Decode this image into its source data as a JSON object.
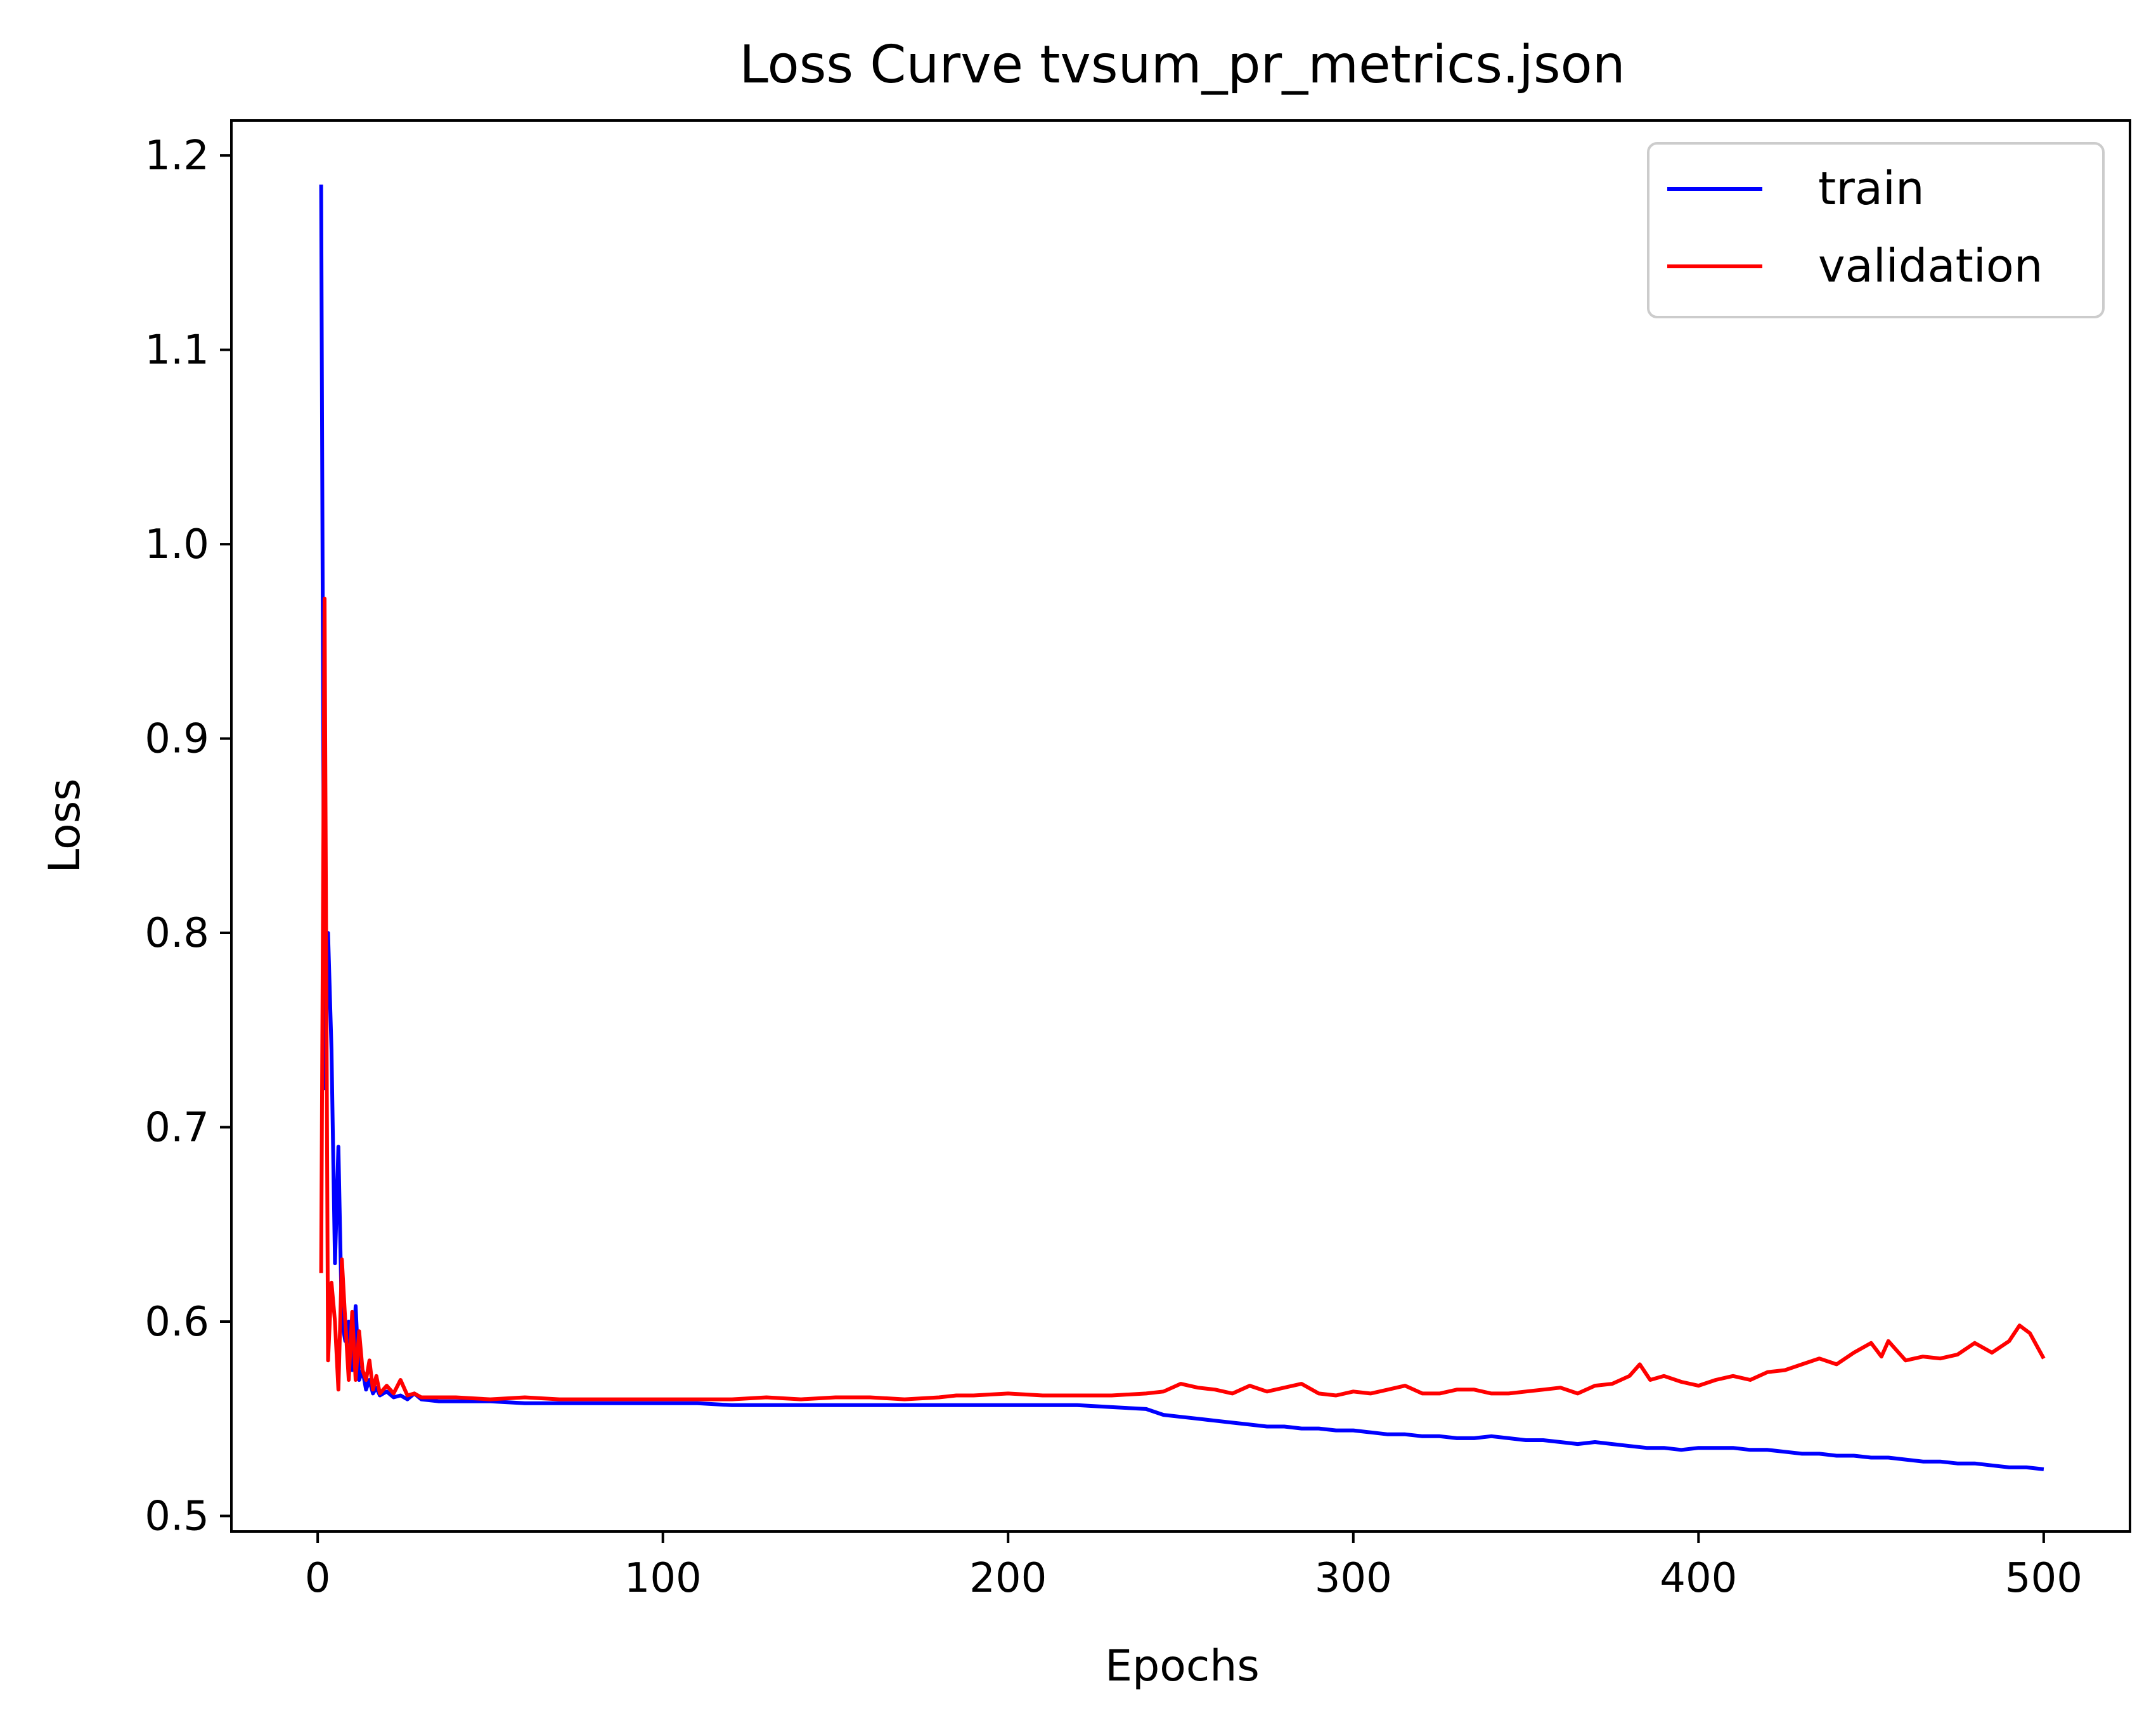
{
  "chart_data": {
    "type": "line",
    "title": "Loss Curve tvsum_pr_metrics.json",
    "xlabel": "Epochs",
    "ylabel": "Loss",
    "xlim": [
      -25,
      525
    ],
    "ylim": [
      0.492,
      1.218
    ],
    "xticks": [
      0,
      100,
      200,
      300,
      400,
      500
    ],
    "yticks": [
      0.5,
      0.6,
      0.7,
      0.8,
      0.9,
      1.0,
      1.1,
      1.2
    ],
    "legend": "top-right",
    "grid": false,
    "series": [
      {
        "name": "train",
        "color": "#0000ff",
        "x": [
          1,
          2,
          3,
          4,
          5,
          6,
          7,
          8,
          9,
          10,
          11,
          12,
          13,
          14,
          15,
          16,
          17,
          18,
          20,
          22,
          24,
          26,
          28,
          30,
          35,
          40,
          50,
          60,
          70,
          80,
          90,
          100,
          110,
          120,
          130,
          140,
          150,
          160,
          170,
          180,
          190,
          200,
          210,
          220,
          230,
          240,
          245,
          250,
          255,
          260,
          265,
          270,
          275,
          280,
          285,
          290,
          295,
          300,
          305,
          310,
          315,
          320,
          325,
          330,
          335,
          340,
          345,
          350,
          355,
          360,
          365,
          370,
          375,
          380,
          385,
          390,
          395,
          400,
          405,
          410,
          415,
          420,
          425,
          430,
          435,
          440,
          445,
          450,
          455,
          460,
          465,
          470,
          475,
          480,
          485,
          490,
          495,
          500
        ],
        "y": [
          1.185,
          0.72,
          0.8,
          0.74,
          0.63,
          0.69,
          0.6,
          0.59,
          0.6,
          0.575,
          0.608,
          0.57,
          0.575,
          0.565,
          0.57,
          0.563,
          0.566,
          0.562,
          0.564,
          0.561,
          0.562,
          0.56,
          0.563,
          0.56,
          0.559,
          0.559,
          0.559,
          0.558,
          0.558,
          0.558,
          0.558,
          0.558,
          0.558,
          0.557,
          0.557,
          0.557,
          0.557,
          0.557,
          0.557,
          0.557,
          0.557,
          0.557,
          0.557,
          0.557,
          0.556,
          0.555,
          0.552,
          0.551,
          0.55,
          0.549,
          0.548,
          0.547,
          0.546,
          0.546,
          0.545,
          0.545,
          0.544,
          0.544,
          0.543,
          0.542,
          0.542,
          0.541,
          0.541,
          0.54,
          0.54,
          0.541,
          0.54,
          0.539,
          0.539,
          0.538,
          0.537,
          0.538,
          0.537,
          0.536,
          0.535,
          0.535,
          0.534,
          0.535,
          0.535,
          0.535,
          0.534,
          0.534,
          0.533,
          0.532,
          0.532,
          0.531,
          0.531,
          0.53,
          0.53,
          0.529,
          0.528,
          0.528,
          0.527,
          0.527,
          0.526,
          0.525,
          0.525,
          0.524
        ]
      },
      {
        "name": "validation",
        "color": "#ff0000",
        "x": [
          1,
          2,
          3,
          4,
          5,
          6,
          7,
          8,
          9,
          10,
          11,
          12,
          13,
          14,
          15,
          16,
          17,
          18,
          20,
          22,
          24,
          26,
          28,
          30,
          35,
          40,
          50,
          60,
          70,
          80,
          90,
          100,
          110,
          120,
          130,
          140,
          150,
          160,
          170,
          180,
          185,
          190,
          200,
          210,
          220,
          230,
          240,
          245,
          250,
          255,
          260,
          265,
          270,
          275,
          280,
          285,
          290,
          295,
          300,
          305,
          310,
          315,
          320,
          325,
          330,
          335,
          340,
          345,
          350,
          355,
          360,
          365,
          370,
          375,
          380,
          383,
          386,
          390,
          395,
          400,
          405,
          410,
          415,
          420,
          425,
          430,
          435,
          440,
          445,
          450,
          453,
          455,
          460,
          465,
          470,
          475,
          480,
          485,
          490,
          493,
          496,
          500
        ],
        "y": [
          0.625,
          0.972,
          0.58,
          0.62,
          0.6,
          0.565,
          0.632,
          0.6,
          0.57,
          0.605,
          0.57,
          0.595,
          0.575,
          0.57,
          0.58,
          0.565,
          0.572,
          0.563,
          0.567,
          0.563,
          0.57,
          0.562,
          0.563,
          0.561,
          0.561,
          0.561,
          0.56,
          0.561,
          0.56,
          0.56,
          0.56,
          0.56,
          0.56,
          0.56,
          0.561,
          0.56,
          0.561,
          0.561,
          0.56,
          0.561,
          0.562,
          0.562,
          0.563,
          0.562,
          0.562,
          0.562,
          0.563,
          0.564,
          0.568,
          0.566,
          0.565,
          0.563,
          0.567,
          0.564,
          0.566,
          0.568,
          0.563,
          0.562,
          0.564,
          0.563,
          0.565,
          0.567,
          0.563,
          0.563,
          0.565,
          0.565,
          0.563,
          0.563,
          0.564,
          0.565,
          0.566,
          0.563,
          0.567,
          0.568,
          0.572,
          0.578,
          0.57,
          0.572,
          0.569,
          0.567,
          0.57,
          0.572,
          0.57,
          0.574,
          0.575,
          0.578,
          0.581,
          0.578,
          0.584,
          0.589,
          0.582,
          0.59,
          0.58,
          0.582,
          0.581,
          0.583,
          0.589,
          0.584,
          0.59,
          0.598,
          0.594,
          0.581
        ]
      }
    ]
  }
}
